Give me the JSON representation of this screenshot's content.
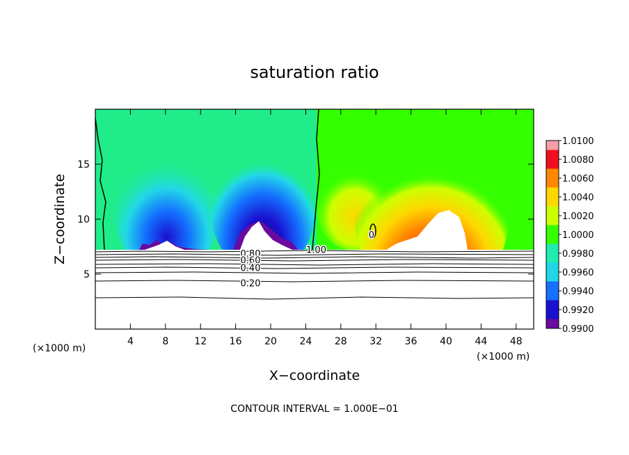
{
  "chart_data": {
    "type": "heatmap",
    "title": "saturation ratio",
    "xlabel": "X−coordinate",
    "ylabel": "Z−coordinate",
    "x_unit_left": "(×1000 m)",
    "x_unit_right": "(×1000 m)",
    "footer": "CONTOUR INTERVAL = 1.000E−01",
    "xlim": [
      0,
      50
    ],
    "ylim": [
      0,
      20
    ],
    "x_ticks": [
      4,
      8,
      12,
      16,
      20,
      24,
      28,
      32,
      36,
      40,
      44,
      48
    ],
    "y_ticks": [
      5,
      10,
      15
    ],
    "colorbar": {
      "levels": [
        0.99,
        0.992,
        0.994,
        0.996,
        0.998,
        1.0,
        1.002,
        1.004,
        1.006,
        1.008,
        1.01
      ],
      "labels": [
        "0.9900",
        "0.9920",
        "0.9940",
        "0.9960",
        "0.9980",
        "1.0000",
        "1.0020",
        "1.0040",
        "1.0060",
        "1.0080",
        "1.0100"
      ],
      "colors": [
        "#6a0a9e",
        "#1a10d0",
        "#1470ff",
        "#22d6e8",
        "#20ecb0",
        "#33ff00",
        "#ccff00",
        "#ffd700",
        "#ff8800",
        "#ee1020",
        "#f4a0a8"
      ]
    },
    "contour_labels": [
      {
        "text": "1.00",
        "x": 25.2,
        "y": 7.25
      },
      {
        "text": "0",
        "x": 31.5,
        "y": 8.6
      },
      {
        "text": "0.80",
        "x": 17.7,
        "y": 6.9
      },
      {
        "text": "0.60",
        "x": 17.7,
        "y": 6.3
      },
      {
        "text": "0.40",
        "x": 17.7,
        "y": 5.6
      },
      {
        "text": "0.20",
        "x": 17.7,
        "y": 4.2
      }
    ]
  }
}
